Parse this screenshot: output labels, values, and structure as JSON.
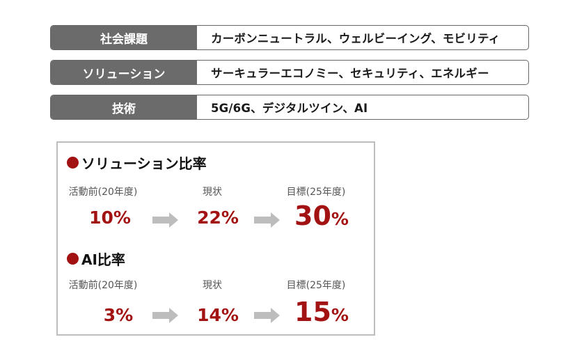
{
  "rows": [
    {
      "label": "社会課題",
      "value": "カーボンニュートラル、ウェルビーイング、モビリティ"
    },
    {
      "label": "ソリューション",
      "value": "サーキュラーエコノミー、セキュリティ、エネルギー"
    },
    {
      "label": "技術",
      "value": "5G/6G、デジタルツイン、AI"
    }
  ],
  "panel": {
    "sections": [
      {
        "title": "ソリューション比率",
        "before_label": "活動前(20年度)",
        "current_label": "現状",
        "target_label": "目標(25年度)",
        "before_value": "10",
        "current_value": "22",
        "target_value": "30",
        "unit": "%"
      },
      {
        "title": "AI比率",
        "before_label": "活動前(20年度)",
        "current_label": "現状",
        "target_label": "目標(25年度)",
        "before_value": "3",
        "current_value": "14",
        "target_value": "15",
        "unit": "%"
      }
    ]
  },
  "colors": {
    "accent": "#a31212",
    "label_bg": "#6b6b6b",
    "arrow": "#bdbdbd"
  }
}
